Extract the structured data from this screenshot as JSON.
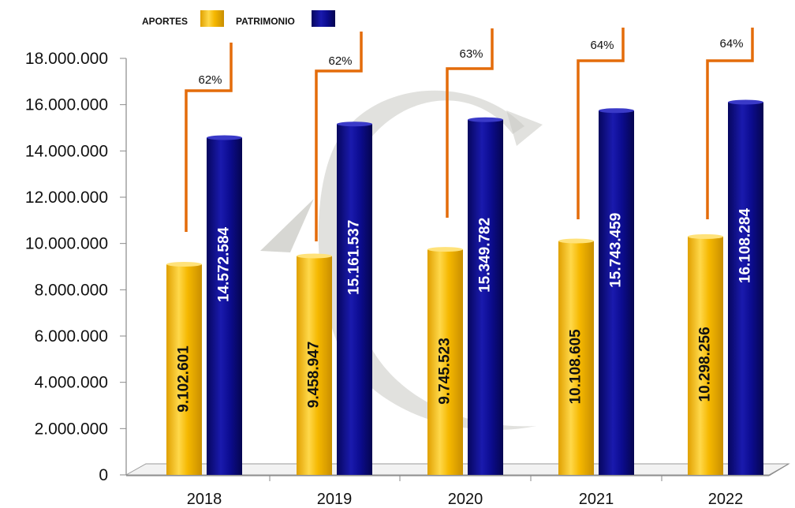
{
  "chart_data": {
    "type": "bar",
    "categories": [
      "2018",
      "2019",
      "2020",
      "2021",
      "2022"
    ],
    "series": [
      {
        "name": "APORTES",
        "color": "#F5B800",
        "values": [
          9102601,
          9458947,
          9745523,
          10108605,
          10298256
        ],
        "labels": [
          "9.102.601",
          "9.458.947",
          "9.745.523",
          "10.108.605",
          "10.298.256"
        ]
      },
      {
        "name": "PATRIMONIO",
        "color": "#0A0A8C",
        "values": [
          14572584,
          15161537,
          15349782,
          15743459,
          16108284
        ],
        "labels": [
          "14.572.584",
          "15.161.537",
          "15.349.782",
          "15.743.459",
          "16.108.284"
        ]
      }
    ],
    "percentages": [
      "62%",
      "62%",
      "63%",
      "64%",
      "64%"
    ],
    "ylim": [
      0,
      18000000
    ],
    "yticks": [
      0,
      2000000,
      4000000,
      6000000,
      8000000,
      10000000,
      12000000,
      14000000,
      16000000,
      18000000
    ],
    "ytick_labels": [
      "0",
      "2.000.000",
      "4.000.000",
      "6.000.000",
      "8.000.000",
      "10.000.000",
      "12.000.000",
      "14.000.000",
      "16.000.000",
      "18.000.000"
    ],
    "legend_position": "top",
    "grid": false,
    "bracket_color": "#E46C0A",
    "title": "",
    "xlabel": "",
    "ylabel": ""
  }
}
